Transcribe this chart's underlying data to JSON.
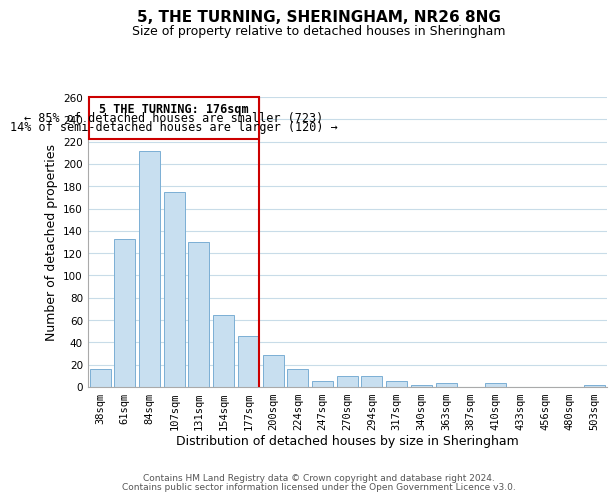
{
  "title": "5, THE TURNING, SHERINGHAM, NR26 8NG",
  "subtitle": "Size of property relative to detached houses in Sheringham",
  "xlabel": "Distribution of detached houses by size in Sheringham",
  "ylabel": "Number of detached properties",
  "bar_labels": [
    "38sqm",
    "61sqm",
    "84sqm",
    "107sqm",
    "131sqm",
    "154sqm",
    "177sqm",
    "200sqm",
    "224sqm",
    "247sqm",
    "270sqm",
    "294sqm",
    "317sqm",
    "340sqm",
    "363sqm",
    "387sqm",
    "410sqm",
    "433sqm",
    "456sqm",
    "480sqm",
    "503sqm"
  ],
  "bar_values": [
    16,
    133,
    212,
    175,
    130,
    65,
    46,
    29,
    16,
    5,
    10,
    10,
    5,
    2,
    4,
    0,
    4,
    0,
    0,
    0,
    2
  ],
  "bar_color": "#c8dff0",
  "bar_edge_color": "#7bafd4",
  "highlight_index": 6,
  "highlight_line_color": "#cc0000",
  "annotation_text_line1": "5 THE TURNING: 176sqm",
  "annotation_text_line2": "← 85% of detached houses are smaller (723)",
  "annotation_text_line3": "14% of semi-detached houses are larger (120) →",
  "annotation_box_color": "#ffffff",
  "annotation_box_edge_color": "#cc0000",
  "ylim": [
    0,
    260
  ],
  "yticks": [
    0,
    20,
    40,
    60,
    80,
    100,
    120,
    140,
    160,
    180,
    200,
    220,
    240,
    260
  ],
  "footer_line1": "Contains HM Land Registry data © Crown copyright and database right 2024.",
  "footer_line2": "Contains public sector information licensed under the Open Government Licence v3.0.",
  "background_color": "#ffffff",
  "grid_color": "#c8dce8",
  "title_fontsize": 11,
  "subtitle_fontsize": 9,
  "axis_label_fontsize": 9,
  "tick_fontsize": 7.5,
  "annotation_fontsize": 8.5,
  "footer_fontsize": 6.5
}
